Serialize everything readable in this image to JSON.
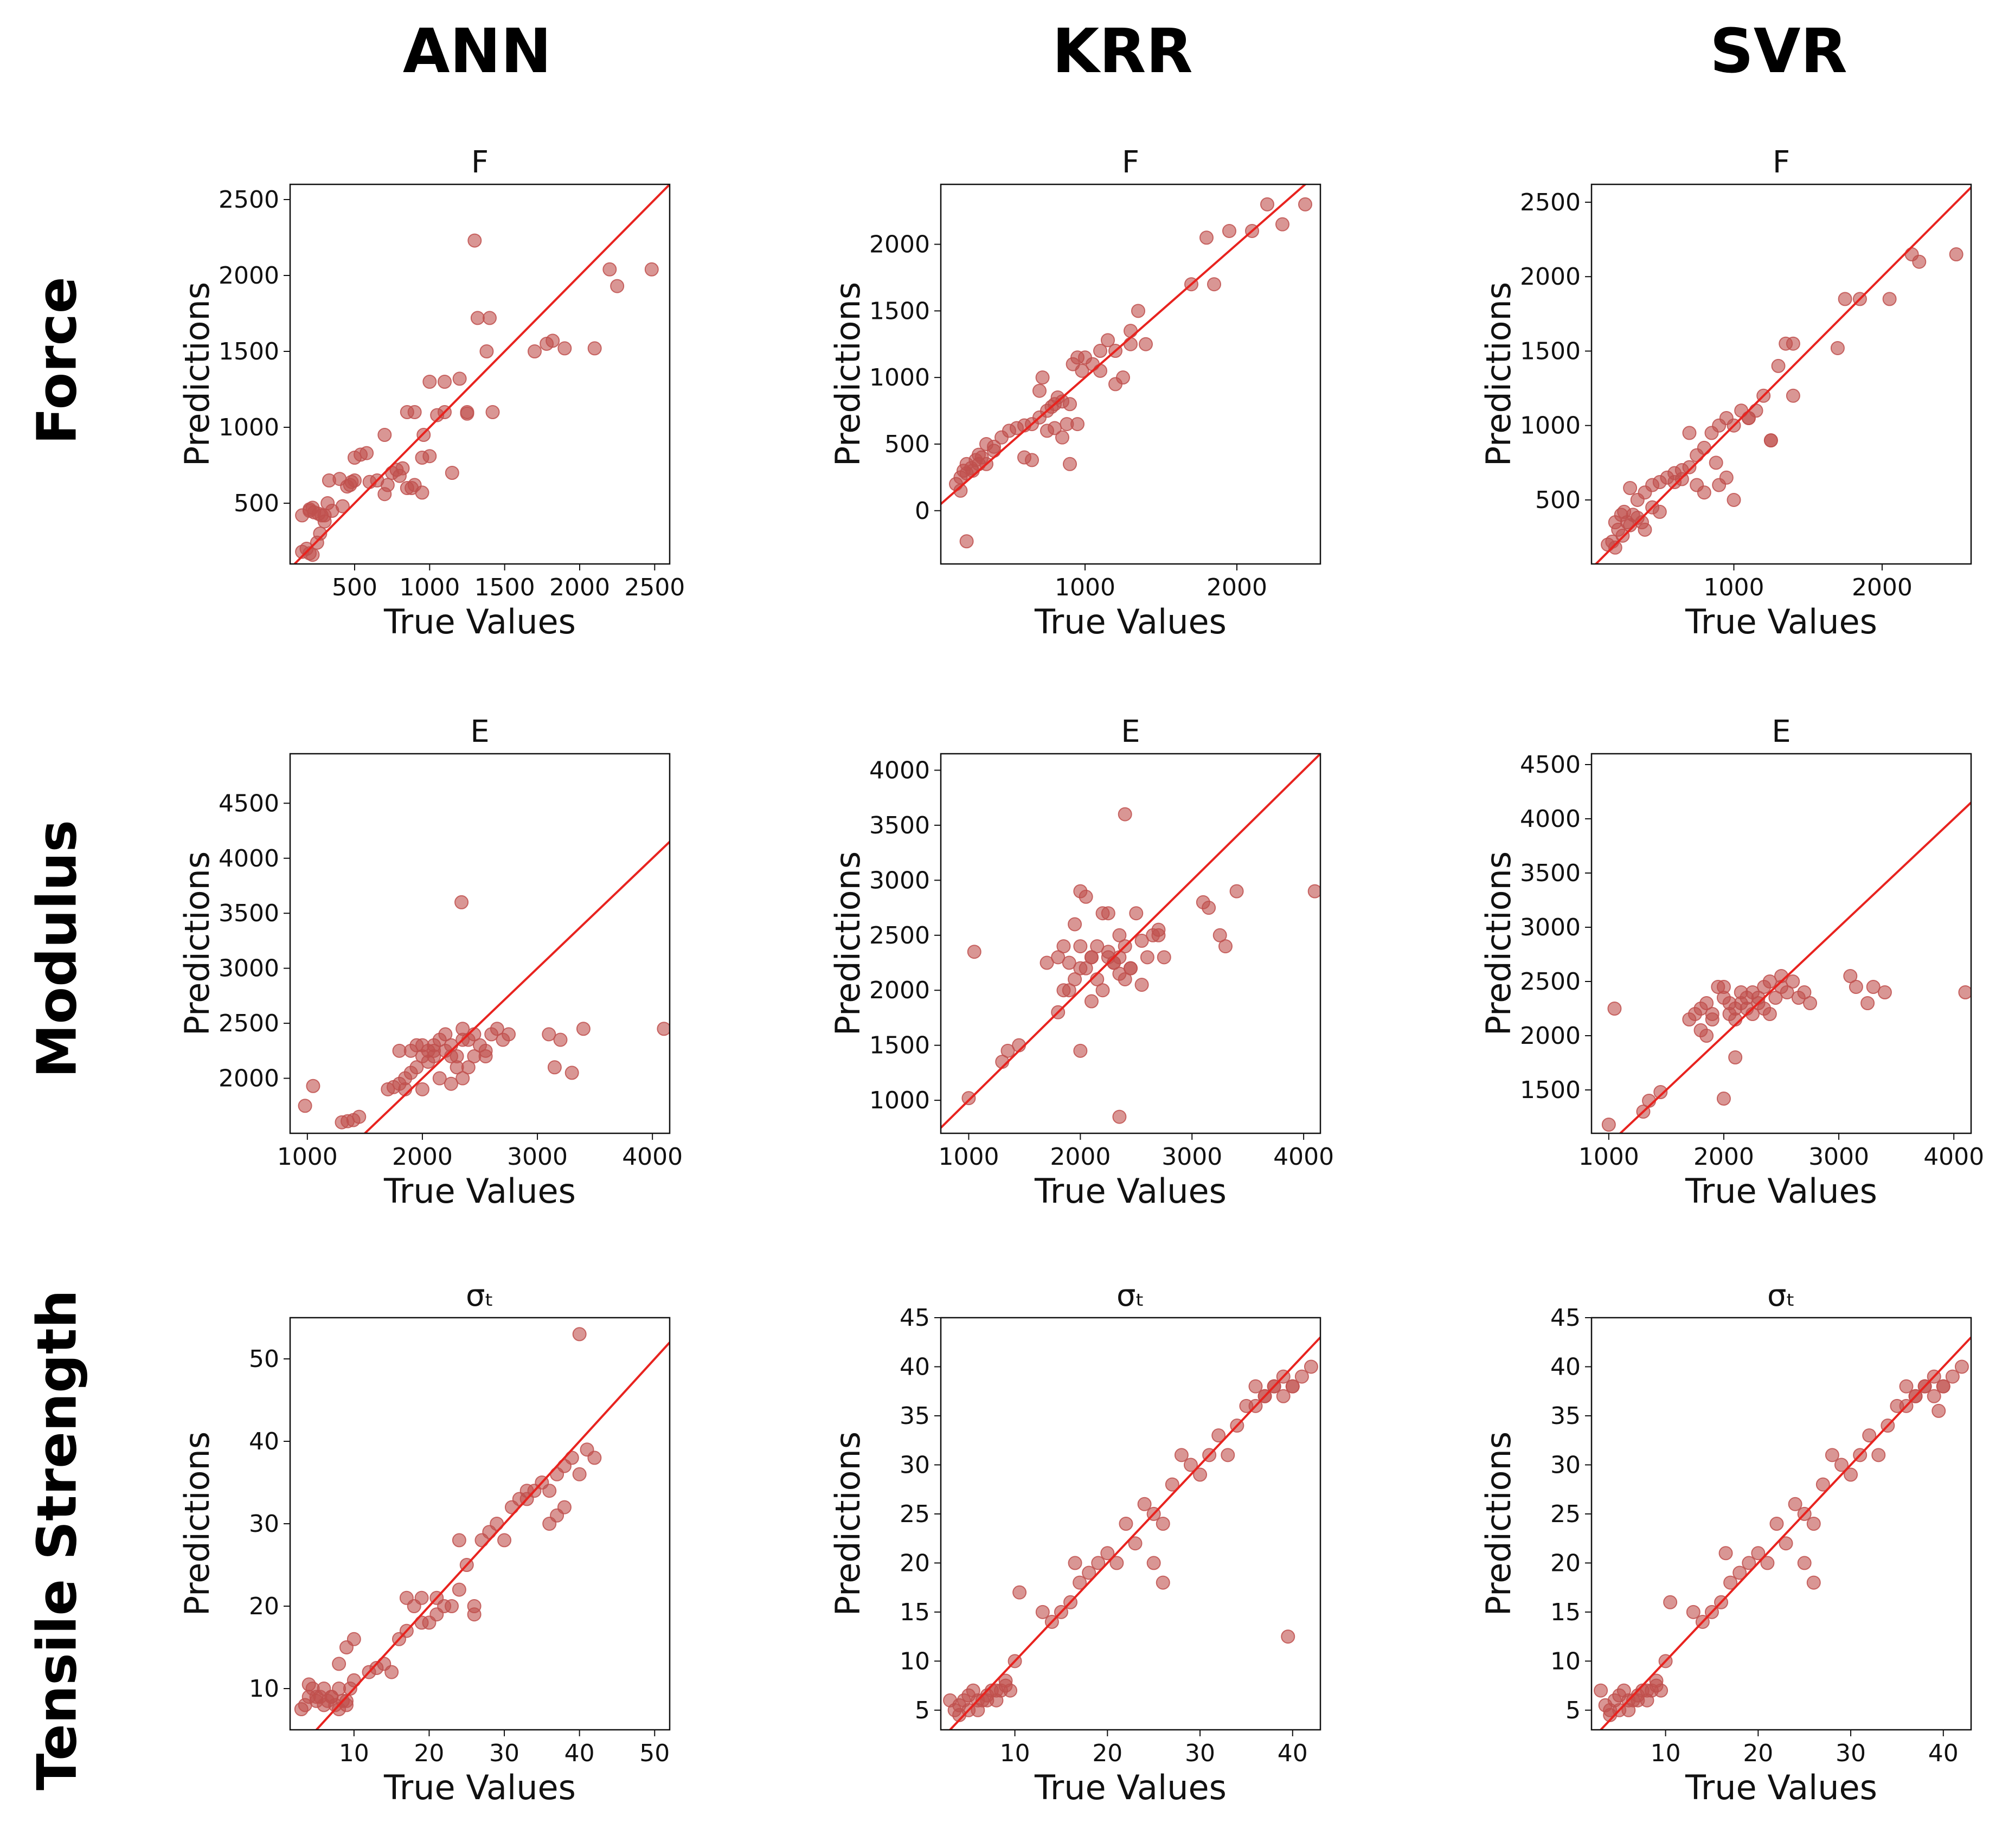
{
  "column_headers": [
    "ANN",
    "KRR",
    "SVR"
  ],
  "row_headers": [
    "Force",
    "Modulus",
    "Tensile Strength"
  ],
  "chart_data": [
    {
      "type": "scatter",
      "title": "F",
      "model": "ANN",
      "property": "Force",
      "xlabel": "True Values",
      "ylabel": "Predictions",
      "xlim": [
        70,
        2600
      ],
      "ylim": [
        100,
        2600
      ],
      "xticks": [
        500,
        1000,
        1500,
        2000,
        2500
      ],
      "yticks": [
        500,
        1000,
        1500,
        2000,
        2500
      ],
      "line": [
        [
          70,
          70
        ],
        [
          2600,
          2600
        ]
      ],
      "x": [
        150,
        180,
        200,
        220,
        250,
        270,
        300,
        150,
        200,
        230,
        260,
        200,
        220,
        280,
        320,
        350,
        330,
        400,
        420,
        480,
        500,
        450,
        470,
        300,
        600,
        650,
        500,
        540,
        580,
        700,
        720,
        750,
        800,
        850,
        900,
        950,
        700,
        780,
        820,
        850,
        880,
        960,
        1000,
        1050,
        1100,
        1200,
        1250,
        900,
        950,
        1000,
        1100,
        1150,
        1250,
        1320,
        1380,
        1400,
        1420,
        1700,
        1780,
        1820,
        1900,
        2100,
        2200,
        2250,
        2480,
        1300
      ],
      "y": [
        180,
        200,
        170,
        160,
        240,
        300,
        380,
        420,
        450,
        440,
        430,
        460,
        470,
        420,
        500,
        450,
        650,
        660,
        480,
        640,
        650,
        610,
        620,
        420,
        640,
        650,
        800,
        820,
        830,
        560,
        620,
        700,
        680,
        600,
        620,
        570,
        950,
        720,
        730,
        1100,
        600,
        950,
        1300,
        1080,
        1300,
        1320,
        1100,
        1100,
        800,
        810,
        1100,
        700,
        1090,
        1720,
        1500,
        1720,
        1100,
        1500,
        1550,
        1570,
        1520,
        1520,
        2040,
        1930,
        2040,
        2230
      ]
    },
    {
      "type": "scatter",
      "title": "F",
      "model": "KRR",
      "property": "Force",
      "xlabel": "True Values",
      "ylabel": "Predictions",
      "xlim": [
        50,
        2550
      ],
      "ylim": [
        -400,
        2450
      ],
      "xticks": [
        1000,
        2000
      ],
      "yticks": [
        0,
        500,
        1000,
        1500,
        2000
      ],
      "line": [
        [
          50,
          50
        ],
        [
          2550,
          2550
        ]
      ],
      "x": [
        150,
        180,
        200,
        220,
        250,
        280,
        300,
        320,
        350,
        400,
        180,
        220,
        260,
        300,
        350,
        400,
        450,
        500,
        550,
        600,
        650,
        700,
        720,
        750,
        780,
        800,
        820,
        850,
        880,
        900,
        920,
        950,
        980,
        1000,
        1050,
        1100,
        1150,
        1200,
        1250,
        1300,
        1350,
        1400,
        700,
        750,
        800,
        850,
        900,
        950,
        600,
        650,
        1100,
        1200,
        1300,
        1700,
        1800,
        1850,
        1950,
        2100,
        2200,
        2300,
        2450,
        220
      ],
      "y": [
        200,
        250,
        300,
        350,
        320,
        380,
        420,
        400,
        350,
        450,
        150,
        280,
        300,
        350,
        500,
        480,
        550,
        600,
        620,
        640,
        650,
        700,
        1000,
        750,
        780,
        800,
        850,
        820,
        650,
        800,
        1100,
        1150,
        1050,
        1150,
        1100,
        1200,
        1280,
        1200,
        1000,
        1350,
        1500,
        1250,
        900,
        600,
        620,
        550,
        350,
        650,
        400,
        380,
        1050,
        950,
        1250,
        1700,
        2050,
        1700,
        2100,
        2100,
        2300,
        2150,
        2300,
        -230
      ]
    },
    {
      "type": "scatter",
      "title": "F",
      "model": "SVR",
      "property": "Force",
      "xlabel": "True Values",
      "ylabel": "Predictions",
      "xlim": [
        40,
        2600
      ],
      "ylim": [
        70,
        2620
      ],
      "xticks": [
        1000,
        2000
      ],
      "yticks": [
        500,
        1000,
        1500,
        2000,
        2500
      ],
      "line": [
        [
          40,
          40
        ],
        [
          2600,
          2600
        ]
      ],
      "x": [
        150,
        180,
        200,
        220,
        250,
        280,
        300,
        320,
        350,
        380,
        400,
        200,
        240,
        260,
        300,
        350,
        400,
        450,
        500,
        550,
        600,
        650,
        700,
        750,
        800,
        850,
        880,
        900,
        950,
        1000,
        1050,
        1100,
        1150,
        1200,
        1250,
        1300,
        1350,
        1400,
        700,
        750,
        800,
        900,
        950,
        1000,
        600,
        650,
        500,
        450,
        1100,
        1250,
        1400,
        1700,
        1750,
        1850,
        2050,
        2200,
        2250,
        2500
      ],
      "y": [
        200,
        220,
        180,
        300,
        260,
        350,
        330,
        400,
        380,
        350,
        300,
        350,
        400,
        420,
        580,
        500,
        550,
        600,
        620,
        650,
        680,
        700,
        720,
        800,
        850,
        950,
        750,
        1000,
        1050,
        1000,
        1100,
        1050,
        1100,
        1200,
        900,
        1400,
        1550,
        1200,
        950,
        600,
        550,
        600,
        650,
        500,
        620,
        640,
        420,
        450,
        1050,
        900,
        1550,
        1520,
        1850,
        1850,
        1850,
        2150,
        2100,
        2150
      ]
    },
    {
      "type": "scatter",
      "title": "E",
      "model": "ANN",
      "property": "Modulus",
      "xlabel": "True Values",
      "ylabel": "Predictions",
      "xlim": [
        850,
        4150
      ],
      "ylim": [
        1500,
        4950
      ],
      "xticks": [
        1000,
        2000,
        3000,
        4000
      ],
      "yticks": [
        2000,
        2500,
        3000,
        3500,
        4000,
        4500
      ],
      "line": [
        [
          850,
          850
        ],
        [
          4150,
          4150
        ]
      ],
      "x": [
        980,
        1050,
        1300,
        1350,
        1400,
        1450,
        1700,
        1750,
        1800,
        1850,
        1900,
        1950,
        2000,
        2050,
        2100,
        2150,
        2200,
        2250,
        2300,
        2350,
        2400,
        2450,
        2500,
        2550,
        2600,
        2650,
        2700,
        2750,
        1900,
        1950,
        2000,
        2050,
        2100,
        2150,
        2200,
        2250,
        2300,
        2350,
        2400,
        1800,
        1850,
        2000,
        2100,
        2250,
        2350,
        2450,
        2550,
        3100,
        3150,
        3200,
        3300,
        3400,
        4100,
        2340
      ],
      "y": [
        1750,
        1930,
        1600,
        1610,
        1620,
        1650,
        1900,
        1920,
        1950,
        2000,
        2050,
        2100,
        2200,
        2250,
        2300,
        2350,
        2400,
        2200,
        2100,
        2450,
        2350,
        2400,
        2300,
        2200,
        2400,
        2450,
        2350,
        2400,
        2250,
        2300,
        1900,
        2150,
        2200,
        2000,
        2250,
        2300,
        2200,
        2350,
        2100,
        2250,
        1900,
        2300,
        2250,
        1950,
        2000,
        2200,
        2250,
        2400,
        2100,
        2350,
        2050,
        2450,
        2450,
        3600
      ]
    },
    {
      "type": "scatter",
      "title": "E",
      "model": "KRR",
      "property": "Modulus",
      "xlabel": "True Values",
      "ylabel": "Predictions",
      "xlim": [
        750,
        4150
      ],
      "ylim": [
        700,
        4150
      ],
      "xticks": [
        1000,
        2000,
        3000,
        4000
      ],
      "yticks": [
        1000,
        1500,
        2000,
        2500,
        3000,
        3500,
        4000
      ],
      "line": [
        [
          750,
          750
        ],
        [
          4150,
          4150
        ]
      ],
      "x": [
        1000,
        1050,
        1300,
        1350,
        1450,
        1700,
        1800,
        1850,
        1900,
        1950,
        2000,
        2050,
        2100,
        2150,
        2200,
        2250,
        2300,
        2350,
        2400,
        2450,
        2500,
        2550,
        2600,
        2650,
        2700,
        2750,
        1900,
        1950,
        2000,
        2050,
        2100,
        2150,
        2200,
        2250,
        2300,
        2350,
        2400,
        1800,
        1850,
        2000,
        2100,
        2250,
        2350,
        2450,
        2550,
        2700,
        3100,
        3150,
        3250,
        3300,
        3400,
        4100,
        2400,
        2350,
        2000
      ],
      "y": [
        1020,
        2350,
        1350,
        1450,
        1500,
        2250,
        2300,
        2400,
        2250,
        2600,
        2900,
        2200,
        2300,
        2400,
        2700,
        2300,
        2250,
        2500,
        2400,
        2200,
        2700,
        2450,
        2300,
        2500,
        2550,
        2300,
        2000,
        2100,
        2200,
        2850,
        2300,
        2100,
        2000,
        2350,
        2250,
        2150,
        2100,
        1800,
        2000,
        2400,
        1900,
        2700,
        2300,
        2200,
        2050,
        2500,
        2800,
        2750,
        2500,
        2400,
        2900,
        2900,
        3600,
        850,
        1450
      ]
    },
    {
      "type": "scatter",
      "title": "E",
      "model": "SVR",
      "property": "Modulus",
      "xlabel": "True Values",
      "ylabel": "Predictions",
      "xlim": [
        850,
        4150
      ],
      "ylim": [
        1100,
        4600
      ],
      "xticks": [
        1000,
        2000,
        3000,
        4000
      ],
      "yticks": [
        1500,
        2000,
        2500,
        3000,
        3500,
        4000,
        4500
      ],
      "line": [
        [
          850,
          850
        ],
        [
          4150,
          4150
        ]
      ],
      "x": [
        1000,
        1050,
        1300,
        1350,
        1450,
        1700,
        1750,
        1800,
        1850,
        1900,
        1950,
        2000,
        2050,
        2100,
        2150,
        2200,
        2250,
        2300,
        2350,
        2400,
        2450,
        2500,
        2550,
        2600,
        2650,
        2700,
        2750,
        1800,
        1850,
        1900,
        2000,
        2050,
        2100,
        2150,
        2200,
        2250,
        2300,
        2350,
        2400,
        2500,
        3100,
        3150,
        3250,
        3300,
        3400,
        4100,
        2000,
        2100
      ],
      "y": [
        1180,
        2250,
        1300,
        1400,
        1480,
        2150,
        2200,
        2250,
        2300,
        2200,
        2450,
        2350,
        2300,
        2250,
        2400,
        2350,
        2200,
        2300,
        2250,
        2500,
        2350,
        2450,
        2400,
        2500,
        2350,
        2400,
        2300,
        2050,
        2000,
        2150,
        2450,
        2200,
        2150,
        2300,
        2250,
        2400,
        2350,
        2450,
        2200,
        2550,
        2550,
        2450,
        2300,
        2450,
        2400,
        2400,
        1420,
        1800
      ]
    },
    {
      "type": "scatter",
      "title": "σₜ",
      "model": "ANN",
      "property": "Tensile Strength",
      "xlabel": "True Values",
      "ylabel": "Predictions",
      "xlim": [
        1.5,
        52
      ],
      "ylim": [
        5,
        55
      ],
      "xticks": [
        10,
        20,
        30,
        40,
        50
      ],
      "yticks": [
        10,
        20,
        30,
        40,
        50
      ],
      "line": [
        [
          1.5,
          1.5
        ],
        [
          52,
          52
        ]
      ],
      "x": [
        3,
        3.5,
        4,
        4.5,
        5,
        5.5,
        6,
        6.5,
        7,
        7.5,
        8,
        8.5,
        9,
        9.5,
        4,
        5,
        6,
        7,
        8,
        9,
        10,
        8,
        9,
        10,
        12,
        13,
        14,
        15,
        16,
        17,
        18,
        19,
        20,
        21,
        22,
        23,
        24,
        25,
        26,
        27,
        28,
        29,
        30,
        31,
        32,
        33,
        34,
        35,
        36,
        37,
        38,
        39,
        40,
        41,
        42,
        17,
        19,
        21,
        24,
        26,
        33,
        36,
        37,
        38,
        40
      ],
      "y": [
        7.5,
        8,
        9,
        10,
        8.5,
        9,
        10,
        8.5,
        9,
        8,
        10,
        8.5,
        8,
        10,
        10.5,
        9,
        8,
        9,
        7.5,
        8.5,
        11,
        13,
        15,
        16,
        12,
        12.5,
        13,
        12,
        16,
        17,
        20,
        21,
        18,
        21,
        20,
        20,
        22,
        25,
        20,
        28,
        29,
        30,
        28,
        32,
        33,
        33,
        34,
        35,
        34,
        36,
        37,
        38,
        36,
        39,
        38,
        21,
        18,
        19,
        28,
        19,
        34,
        30,
        31,
        32,
        53
      ]
    },
    {
      "type": "scatter",
      "title": "σₜ",
      "model": "KRR",
      "property": "Tensile Strength",
      "xlabel": "True Values",
      "ylabel": "Predictions",
      "xlim": [
        2,
        43
      ],
      "ylim": [
        3,
        45
      ],
      "xticks": [
        10,
        20,
        30,
        40
      ],
      "yticks": [
        5,
        10,
        15,
        20,
        25,
        30,
        35,
        40,
        45
      ],
      "line": [
        [
          2,
          2
        ],
        [
          43,
          43
        ]
      ],
      "x": [
        3,
        3.5,
        4,
        4.5,
        5,
        5.5,
        6,
        6.5,
        7,
        7.5,
        8,
        8.5,
        9,
        9.5,
        4,
        5,
        6,
        7,
        8,
        9,
        10,
        10.5,
        13,
        14,
        15,
        16,
        16.5,
        17,
        18,
        19,
        20,
        21,
        22,
        23,
        24,
        25,
        26,
        27,
        28,
        29,
        30,
        31,
        32,
        33,
        34,
        35,
        36,
        37,
        38,
        39,
        40,
        41,
        42,
        36,
        37,
        38,
        39,
        40,
        25,
        26,
        39.5
      ],
      "y": [
        6,
        5,
        5.5,
        6,
        6.5,
        7,
        5,
        6,
        6.5,
        7,
        6,
        7,
        7.5,
        7,
        4.5,
        5,
        6,
        6,
        7,
        8,
        10,
        17,
        15,
        14,
        15,
        16,
        20,
        18,
        19,
        20,
        21,
        20,
        24,
        22,
        26,
        25,
        24,
        28,
        31,
        30,
        29,
        31,
        33,
        31,
        34,
        36,
        38,
        37,
        38,
        39,
        38,
        39,
        40,
        36,
        37,
        38,
        37,
        38,
        20,
        18,
        12.5
      ]
    },
    {
      "type": "scatter",
      "title": "σₜ",
      "model": "SVR",
      "property": "Tensile Strength",
      "xlabel": "True Values",
      "ylabel": "Predictions",
      "xlim": [
        2,
        43
      ],
      "ylim": [
        3,
        45
      ],
      "xticks": [
        10,
        20,
        30,
        40
      ],
      "yticks": [
        5,
        10,
        15,
        20,
        25,
        30,
        35,
        40,
        45
      ],
      "line": [
        [
          2,
          2
        ],
        [
          43,
          43
        ]
      ],
      "x": [
        3,
        3.5,
        4,
        4.5,
        5,
        5.5,
        6,
        6.5,
        7,
        7.5,
        8,
        8.5,
        9,
        9.5,
        4,
        5,
        6,
        7,
        8,
        9,
        10,
        10.5,
        13,
        14,
        15,
        16,
        16.5,
        17,
        18,
        19,
        20,
        21,
        22,
        23,
        24,
        25,
        26,
        27,
        28,
        29,
        30,
        31,
        32,
        33,
        34,
        35,
        36,
        37,
        38,
        39,
        40,
        41,
        42,
        36,
        37,
        38,
        39,
        40,
        25,
        26,
        39.5
      ],
      "y": [
        7,
        5.5,
        5,
        6,
        6.5,
        7,
        5,
        6,
        6.5,
        7,
        6,
        7,
        7.5,
        7,
        4.5,
        5,
        6,
        6,
        7,
        8,
        10,
        16,
        15,
        14,
        15,
        16,
        21,
        18,
        19,
        20,
        21,
        20,
        24,
        22,
        26,
        25,
        24,
        28,
        31,
        30,
        29,
        31,
        33,
        31,
        34,
        36,
        38,
        37,
        38,
        39,
        38,
        39,
        40,
        36,
        37,
        38,
        37,
        38,
        20,
        18,
        35.5
      ]
    }
  ]
}
